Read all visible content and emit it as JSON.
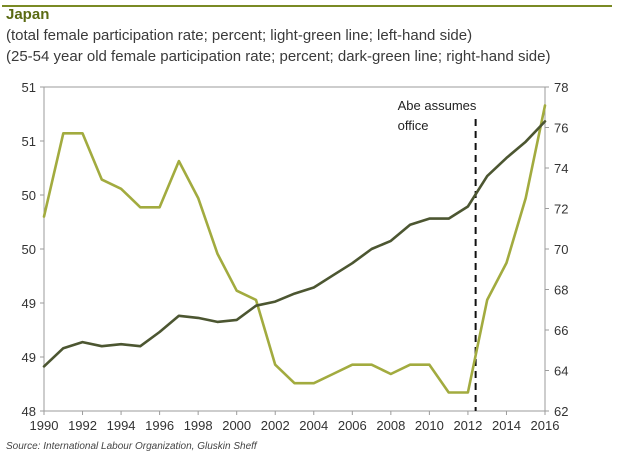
{
  "header": {
    "title": "Japan",
    "subtitle_1": "(total female participation rate; percent; light-green line; left-hand side)",
    "subtitle_2": "(25-54 year old female participation rate; percent; dark-green line; right-hand side)"
  },
  "source": "Source: International Labour Organization, Gluskin Sheff",
  "colors": {
    "light_green": "#a2ab3f",
    "dark_green": "#4c5631",
    "frame": "#9b9b9b",
    "title_bar": "#7a8a24"
  },
  "chart_data": {
    "type": "line",
    "x": [
      1990,
      1991,
      1992,
      1993,
      1994,
      1995,
      1996,
      1997,
      1998,
      1999,
      2000,
      2001,
      2002,
      2003,
      2004,
      2005,
      2006,
      2007,
      2008,
      2009,
      2010,
      2011,
      2012,
      2013,
      2014,
      2015,
      2016
    ],
    "x_tick_labels": [
      "1990",
      "1992",
      "1994",
      "1996",
      "1998",
      "2000",
      "2002",
      "2004",
      "2006",
      "2008",
      "2010",
      "2012",
      "2014",
      "2016"
    ],
    "xlim": [
      1990,
      2016
    ],
    "left_axis": {
      "ylim": [
        48,
        51.5
      ],
      "tick_labels": [
        "48",
        "49",
        "49",
        "50",
        "50",
        "51",
        "51"
      ]
    },
    "right_axis": {
      "ylim": [
        62,
        78
      ],
      "tick_labels": [
        "62",
        "64",
        "66",
        "68",
        "70",
        "72",
        "74",
        "76",
        "78"
      ]
    },
    "series": [
      {
        "axis": "left",
        "color": "light_green",
        "values": [
          50.1,
          51.0,
          51.0,
          50.5,
          50.4,
          50.2,
          50.2,
          50.7,
          50.3,
          49.7,
          49.3,
          49.2,
          48.5,
          48.3,
          48.3,
          48.4,
          48.5,
          48.5,
          48.4,
          48.5,
          48.5,
          48.2,
          48.2,
          49.2,
          49.6,
          50.3,
          51.3
        ]
      },
      {
        "axis": "right",
        "color": "dark_green",
        "values": [
          64.2,
          65.1,
          65.4,
          65.2,
          65.3,
          65.2,
          65.9,
          66.7,
          66.6,
          66.4,
          66.5,
          67.2,
          67.4,
          67.8,
          68.1,
          68.7,
          69.3,
          70.0,
          70.4,
          71.2,
          71.5,
          71.5,
          72.1,
          73.6,
          74.5,
          75.3,
          76.3
        ]
      }
    ],
    "annotation": {
      "text_line1": "Abe assumes",
      "text_line2": "office",
      "x": 2012.4
    },
    "grid": false
  }
}
